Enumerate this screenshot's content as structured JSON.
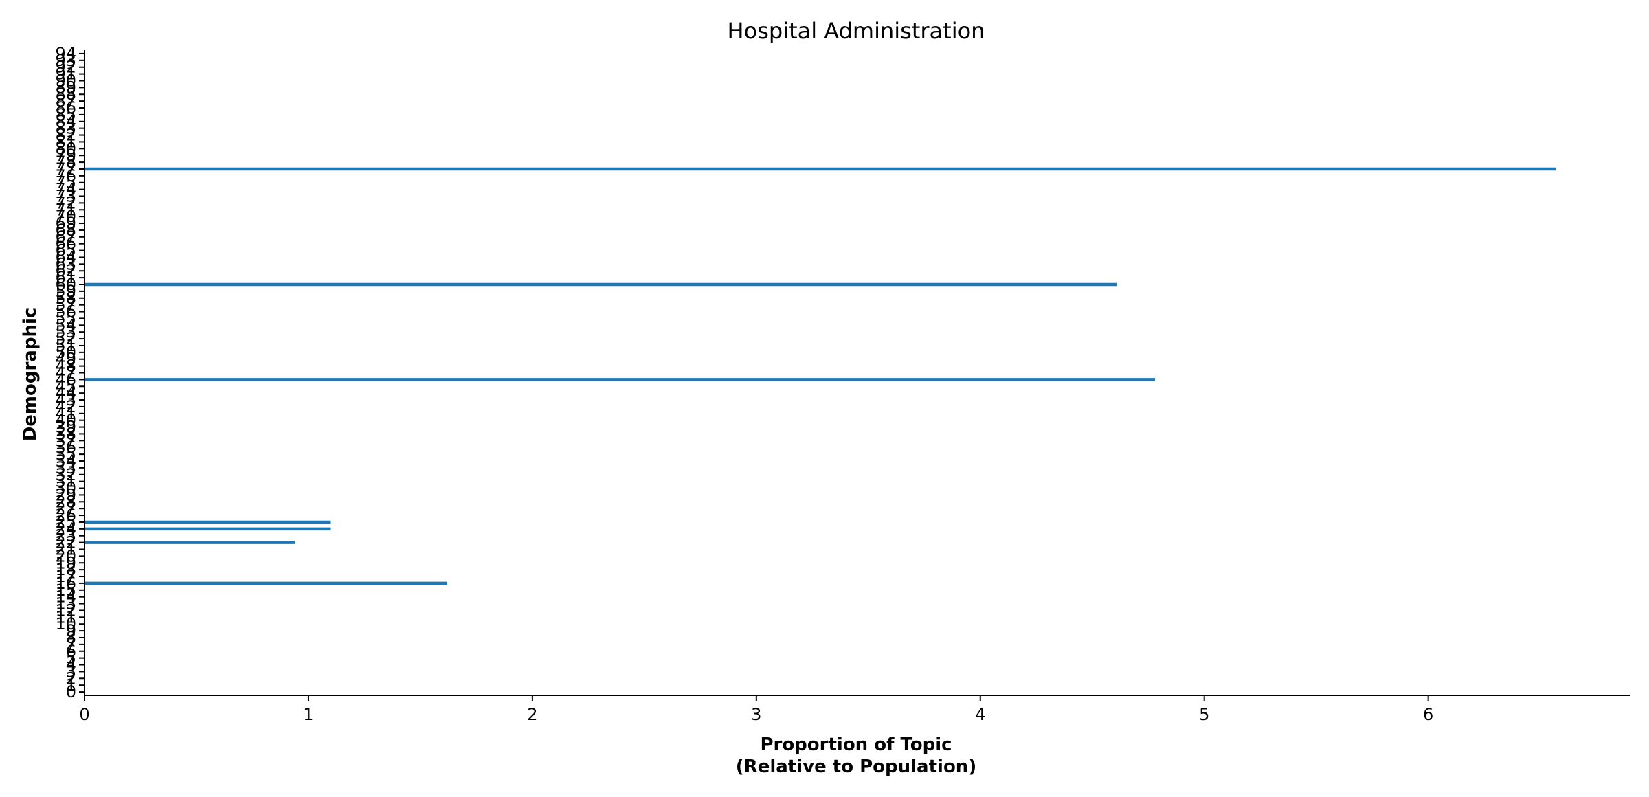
{
  "chart_data": {
    "type": "bar",
    "orientation": "horizontal",
    "title": "Hospital Administration",
    "xlabel_lines": [
      "Proportion of Topic",
      "(Relative to Population)"
    ],
    "ylabel": "Demographic",
    "xlim": [
      0,
      6.9
    ],
    "ylim": [
      -0.5,
      94.5
    ],
    "x_ticks": [
      0,
      1,
      2,
      3,
      4,
      5,
      6
    ],
    "y_ticks": [
      0,
      1,
      2,
      3,
      4,
      5,
      6,
      7,
      8,
      9,
      10,
      11,
      12,
      13,
      14,
      15,
      16,
      17,
      18,
      19,
      20,
      21,
      22,
      23,
      24,
      25,
      26,
      27,
      28,
      29,
      30,
      31,
      32,
      33,
      34,
      35,
      36,
      37,
      38,
      39,
      40,
      41,
      42,
      43,
      44,
      45,
      46,
      47,
      48,
      49,
      50,
      51,
      52,
      53,
      54,
      55,
      56,
      57,
      58,
      59,
      60,
      61,
      62,
      63,
      64,
      65,
      66,
      67,
      68,
      69,
      70,
      71,
      72,
      73,
      74,
      75,
      76,
      77,
      78,
      79,
      80,
      81,
      82,
      83,
      84,
      85,
      86,
      87,
      88,
      89,
      90,
      91,
      92,
      93,
      94
    ],
    "bars": [
      {
        "category": 16,
        "value": 1.62
      },
      {
        "category": 22,
        "value": 0.94
      },
      {
        "category": 24,
        "value": 1.1
      },
      {
        "category": 25,
        "value": 1.1
      },
      {
        "category": 46,
        "value": 4.78
      },
      {
        "category": 60,
        "value": 4.61
      },
      {
        "category": 77,
        "value": 6.57
      }
    ],
    "bar_color": "#1f77b4",
    "grid": false,
    "legend": "none"
  }
}
